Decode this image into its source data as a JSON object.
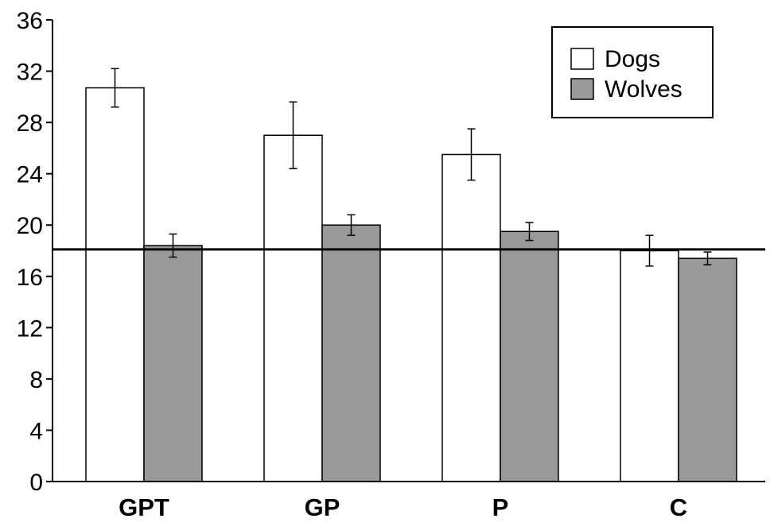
{
  "chart_data": {
    "type": "bar",
    "title": "",
    "xlabel": "",
    "ylabel": "",
    "categories": [
      "GPT",
      "GP",
      "P",
      "C"
    ],
    "series": [
      {
        "name": "Dogs",
        "color": "#ffffff",
        "values": [
          30.7,
          27.0,
          25.5,
          18.0
        ],
        "error": [
          1.5,
          2.6,
          2.0,
          1.2
        ]
      },
      {
        "name": "Wolves",
        "color": "#999999",
        "values": [
          18.4,
          20.0,
          19.5,
          17.4
        ],
        "error": [
          0.9,
          0.8,
          0.7,
          0.5
        ]
      }
    ],
    "ylim": [
      0,
      36
    ],
    "yticks": [
      0,
      4,
      8,
      12,
      16,
      20,
      24,
      28,
      32,
      36
    ],
    "reference_line": 18.1,
    "grid": false,
    "legend_position": "top-right"
  }
}
